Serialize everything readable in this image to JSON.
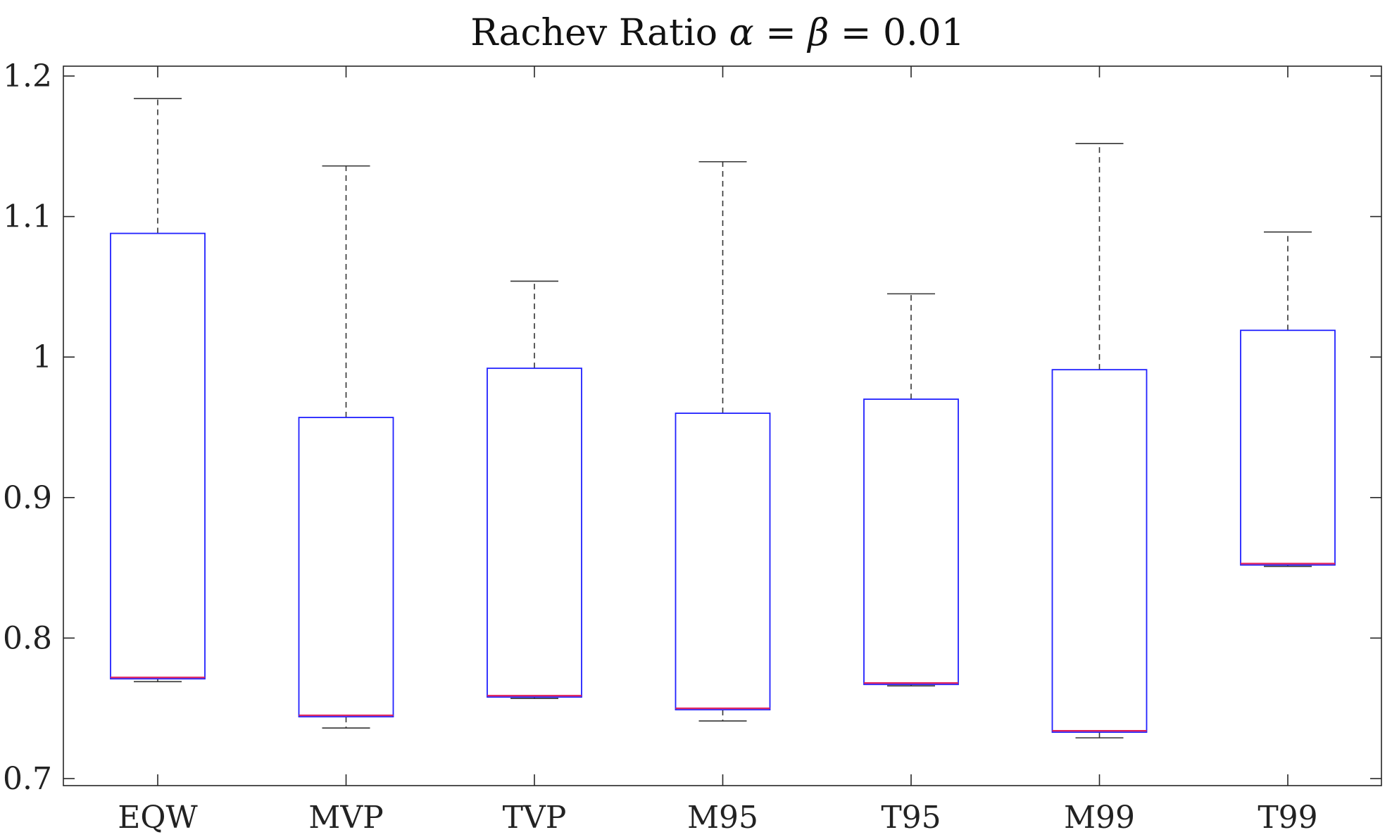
{
  "chart_data": {
    "type": "boxplot",
    "title_parts": {
      "prefix": "Rachev Ratio ",
      "alpha": "α",
      "eq1": " = ",
      "beta": "β",
      "eq2": " = 0.01"
    },
    "xlabel": "",
    "ylabel": "",
    "ylim": [
      0.7,
      1.2
    ],
    "yticks": [
      0.7,
      0.8,
      0.9,
      1.0,
      1.1,
      1.2
    ],
    "ytick_labels": [
      "0.7",
      "0.8",
      "0.9",
      "1",
      "1.1",
      "1.2"
    ],
    "grid": false,
    "categories": [
      "EQW",
      "MVP",
      "TVP",
      "M95",
      "T95",
      "M99",
      "T99"
    ],
    "boxes": [
      {
        "name": "EQW",
        "lower_whisker": 0.769,
        "q1": 0.771,
        "median": 0.772,
        "q3": 1.088,
        "upper_whisker": 1.184
      },
      {
        "name": "MVP",
        "lower_whisker": 0.736,
        "q1": 0.744,
        "median": 0.745,
        "q3": 0.957,
        "upper_whisker": 1.136
      },
      {
        "name": "TVP",
        "lower_whisker": 0.757,
        "q1": 0.758,
        "median": 0.759,
        "q3": 0.992,
        "upper_whisker": 1.054
      },
      {
        "name": "M95",
        "lower_whisker": 0.741,
        "q1": 0.749,
        "median": 0.75,
        "q3": 0.96,
        "upper_whisker": 1.139
      },
      {
        "name": "T95",
        "lower_whisker": 0.766,
        "q1": 0.767,
        "median": 0.768,
        "q3": 0.97,
        "upper_whisker": 1.045
      },
      {
        "name": "M99",
        "lower_whisker": 0.729,
        "q1": 0.733,
        "median": 0.734,
        "q3": 0.991,
        "upper_whisker": 1.152
      },
      {
        "name": "T99",
        "lower_whisker": 0.851,
        "q1": 0.852,
        "median": 0.853,
        "q3": 1.019,
        "upper_whisker": 1.089
      }
    ],
    "colors": {
      "box": "#2020ff",
      "median": "#e0205a",
      "whisker": "#333333",
      "axis": "#262626",
      "text": "#222222"
    }
  }
}
